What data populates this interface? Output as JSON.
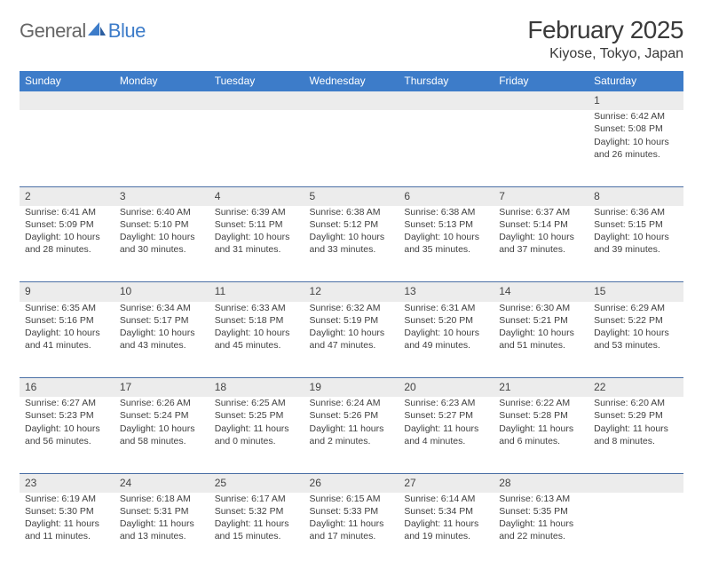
{
  "logo": {
    "brand_a": "General",
    "brand_b": "Blue"
  },
  "header": {
    "month": "February 2025",
    "location": "Kiyose, Tokyo, Japan"
  },
  "colors": {
    "header_bg": "#3d7cc9",
    "header_text": "#ffffff",
    "daynum_bg": "#ececec",
    "border": "#4a6fa5",
    "body_text": "#3f3f3f"
  },
  "weekdays": [
    "Sunday",
    "Monday",
    "Tuesday",
    "Wednesday",
    "Thursday",
    "Friday",
    "Saturday"
  ],
  "weeks": [
    [
      {
        "n": "",
        "sr": "",
        "ss": "",
        "d1": "",
        "d2": ""
      },
      {
        "n": "",
        "sr": "",
        "ss": "",
        "d1": "",
        "d2": ""
      },
      {
        "n": "",
        "sr": "",
        "ss": "",
        "d1": "",
        "d2": ""
      },
      {
        "n": "",
        "sr": "",
        "ss": "",
        "d1": "",
        "d2": ""
      },
      {
        "n": "",
        "sr": "",
        "ss": "",
        "d1": "",
        "d2": ""
      },
      {
        "n": "",
        "sr": "",
        "ss": "",
        "d1": "",
        "d2": ""
      },
      {
        "n": "1",
        "sr": "Sunrise: 6:42 AM",
        "ss": "Sunset: 5:08 PM",
        "d1": "Daylight: 10 hours",
        "d2": "and 26 minutes."
      }
    ],
    [
      {
        "n": "2",
        "sr": "Sunrise: 6:41 AM",
        "ss": "Sunset: 5:09 PM",
        "d1": "Daylight: 10 hours",
        "d2": "and 28 minutes."
      },
      {
        "n": "3",
        "sr": "Sunrise: 6:40 AM",
        "ss": "Sunset: 5:10 PM",
        "d1": "Daylight: 10 hours",
        "d2": "and 30 minutes."
      },
      {
        "n": "4",
        "sr": "Sunrise: 6:39 AM",
        "ss": "Sunset: 5:11 PM",
        "d1": "Daylight: 10 hours",
        "d2": "and 31 minutes."
      },
      {
        "n": "5",
        "sr": "Sunrise: 6:38 AM",
        "ss": "Sunset: 5:12 PM",
        "d1": "Daylight: 10 hours",
        "d2": "and 33 minutes."
      },
      {
        "n": "6",
        "sr": "Sunrise: 6:38 AM",
        "ss": "Sunset: 5:13 PM",
        "d1": "Daylight: 10 hours",
        "d2": "and 35 minutes."
      },
      {
        "n": "7",
        "sr": "Sunrise: 6:37 AM",
        "ss": "Sunset: 5:14 PM",
        "d1": "Daylight: 10 hours",
        "d2": "and 37 minutes."
      },
      {
        "n": "8",
        "sr": "Sunrise: 6:36 AM",
        "ss": "Sunset: 5:15 PM",
        "d1": "Daylight: 10 hours",
        "d2": "and 39 minutes."
      }
    ],
    [
      {
        "n": "9",
        "sr": "Sunrise: 6:35 AM",
        "ss": "Sunset: 5:16 PM",
        "d1": "Daylight: 10 hours",
        "d2": "and 41 minutes."
      },
      {
        "n": "10",
        "sr": "Sunrise: 6:34 AM",
        "ss": "Sunset: 5:17 PM",
        "d1": "Daylight: 10 hours",
        "d2": "and 43 minutes."
      },
      {
        "n": "11",
        "sr": "Sunrise: 6:33 AM",
        "ss": "Sunset: 5:18 PM",
        "d1": "Daylight: 10 hours",
        "d2": "and 45 minutes."
      },
      {
        "n": "12",
        "sr": "Sunrise: 6:32 AM",
        "ss": "Sunset: 5:19 PM",
        "d1": "Daylight: 10 hours",
        "d2": "and 47 minutes."
      },
      {
        "n": "13",
        "sr": "Sunrise: 6:31 AM",
        "ss": "Sunset: 5:20 PM",
        "d1": "Daylight: 10 hours",
        "d2": "and 49 minutes."
      },
      {
        "n": "14",
        "sr": "Sunrise: 6:30 AM",
        "ss": "Sunset: 5:21 PM",
        "d1": "Daylight: 10 hours",
        "d2": "and 51 minutes."
      },
      {
        "n": "15",
        "sr": "Sunrise: 6:29 AM",
        "ss": "Sunset: 5:22 PM",
        "d1": "Daylight: 10 hours",
        "d2": "and 53 minutes."
      }
    ],
    [
      {
        "n": "16",
        "sr": "Sunrise: 6:27 AM",
        "ss": "Sunset: 5:23 PM",
        "d1": "Daylight: 10 hours",
        "d2": "and 56 minutes."
      },
      {
        "n": "17",
        "sr": "Sunrise: 6:26 AM",
        "ss": "Sunset: 5:24 PM",
        "d1": "Daylight: 10 hours",
        "d2": "and 58 minutes."
      },
      {
        "n": "18",
        "sr": "Sunrise: 6:25 AM",
        "ss": "Sunset: 5:25 PM",
        "d1": "Daylight: 11 hours",
        "d2": "and 0 minutes."
      },
      {
        "n": "19",
        "sr": "Sunrise: 6:24 AM",
        "ss": "Sunset: 5:26 PM",
        "d1": "Daylight: 11 hours",
        "d2": "and 2 minutes."
      },
      {
        "n": "20",
        "sr": "Sunrise: 6:23 AM",
        "ss": "Sunset: 5:27 PM",
        "d1": "Daylight: 11 hours",
        "d2": "and 4 minutes."
      },
      {
        "n": "21",
        "sr": "Sunrise: 6:22 AM",
        "ss": "Sunset: 5:28 PM",
        "d1": "Daylight: 11 hours",
        "d2": "and 6 minutes."
      },
      {
        "n": "22",
        "sr": "Sunrise: 6:20 AM",
        "ss": "Sunset: 5:29 PM",
        "d1": "Daylight: 11 hours",
        "d2": "and 8 minutes."
      }
    ],
    [
      {
        "n": "23",
        "sr": "Sunrise: 6:19 AM",
        "ss": "Sunset: 5:30 PM",
        "d1": "Daylight: 11 hours",
        "d2": "and 11 minutes."
      },
      {
        "n": "24",
        "sr": "Sunrise: 6:18 AM",
        "ss": "Sunset: 5:31 PM",
        "d1": "Daylight: 11 hours",
        "d2": "and 13 minutes."
      },
      {
        "n": "25",
        "sr": "Sunrise: 6:17 AM",
        "ss": "Sunset: 5:32 PM",
        "d1": "Daylight: 11 hours",
        "d2": "and 15 minutes."
      },
      {
        "n": "26",
        "sr": "Sunrise: 6:15 AM",
        "ss": "Sunset: 5:33 PM",
        "d1": "Daylight: 11 hours",
        "d2": "and 17 minutes."
      },
      {
        "n": "27",
        "sr": "Sunrise: 6:14 AM",
        "ss": "Sunset: 5:34 PM",
        "d1": "Daylight: 11 hours",
        "d2": "and 19 minutes."
      },
      {
        "n": "28",
        "sr": "Sunrise: 6:13 AM",
        "ss": "Sunset: 5:35 PM",
        "d1": "Daylight: 11 hours",
        "d2": "and 22 minutes."
      },
      {
        "n": "",
        "sr": "",
        "ss": "",
        "d1": "",
        "d2": ""
      }
    ]
  ]
}
